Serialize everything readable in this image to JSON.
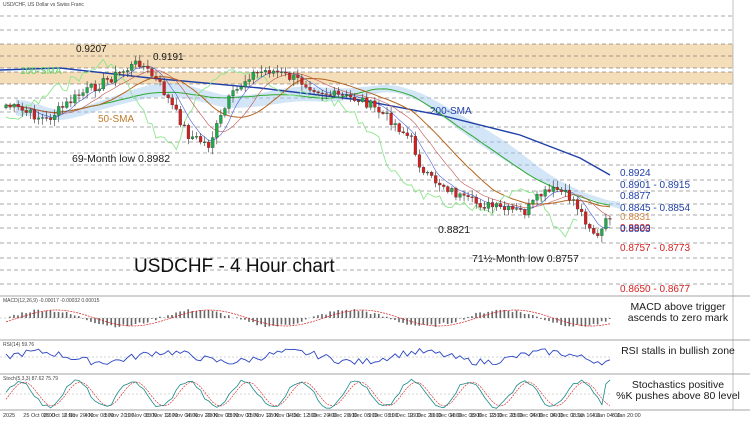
{
  "chart_data": {
    "type": "candlestick",
    "title": "USDCHF - 4 Hour chart",
    "header_text": "USD/CHF, US Dollar vs Swiss Franc",
    "price_levels": [
      {
        "label": "0.9207",
        "value": 0.9207
      },
      {
        "label": "0.9191",
        "value": 0.9191
      },
      {
        "label": "0.8924",
        "value": 0.8924
      },
      {
        "label": "0.8901 - 0.8915",
        "value": 0.8908
      },
      {
        "label": "0.8877",
        "value": 0.8877
      },
      {
        "label": "0.8845 - 0.8854",
        "value": 0.885
      },
      {
        "label": "0.8831",
        "value": 0.8831
      },
      {
        "label": "0.8820",
        "value": 0.882
      },
      {
        "label": "0.8803",
        "value": 0.8803
      },
      {
        "label": "0.8757 - 0.8773",
        "value": 0.8765
      },
      {
        "label": "0.8650 - 0.8677",
        "value": 0.8663
      }
    ],
    "annotations": {
      "sma100": "100-SMA",
      "sma50": "50-SMA",
      "sma200": "200-SMA",
      "low69": "69-Month low 0.8982",
      "low8821": "0.8821",
      "low71": "71½-Month low 0.8757"
    },
    "x_ticks": [
      "2025",
      "25 Oct 08:00",
      "29 Oct 16:00",
      "2 Nov 20:00",
      "4 Nov 08:00",
      "5 Nov 20:00",
      "11 Nov 08:00",
      "13 Nov 12:00",
      "16 Nov 04:00",
      "18 Nov 20:00",
      "20 Nov 08:00",
      "23 Nov 00:00",
      "25 Nov 12:00",
      "26 Nov 04:00",
      "1 Dec 12:00",
      "3 Dec 20:00",
      "4 Dec 20:00",
      "6 Dec 08:00",
      "9 Dec 08:00",
      "11 Dec 12:00",
      "16 Dec 20:00",
      "16 Dec 04:00",
      "18 Dec 08:00",
      "19 Dec 12:00",
      "23 Dec 20:00",
      "25 Dec 04:00",
      "29 Dec 04:00",
      "30 Dec 08:00",
      "2 Jan 16:00",
      "4 Jan 04:00",
      "6 Jan 20:00"
    ],
    "panels": [
      {
        "name": "MACD",
        "header": "MACD(12,26,9) -0.00017 -0.00032 0.00015",
        "comment_lines": [
          "MACD above trigger",
          "ascends to zero mark"
        ]
      },
      {
        "name": "RSI",
        "header": "RSI(14) 59.76",
        "comment_lines": [
          "RSI stalls in bullish zone"
        ]
      },
      {
        "name": "Stochastics",
        "header": "Stoch(5,3,3) 87.62 75.79",
        "comment_lines": [
          "Stochastics positive",
          "%K pushes above 80 level"
        ]
      }
    ],
    "colors": {
      "bull": "#1faa4a",
      "bear": "#d62020",
      "sma200": "#1f3fa8",
      "sma100": "#7fe27f",
      "sma50": "#b5651d",
      "cloud": "#9cc8ee",
      "zone": "#f3d9b1",
      "red_label": "#d62020",
      "blue_label": "#1f3fa8"
    }
  }
}
